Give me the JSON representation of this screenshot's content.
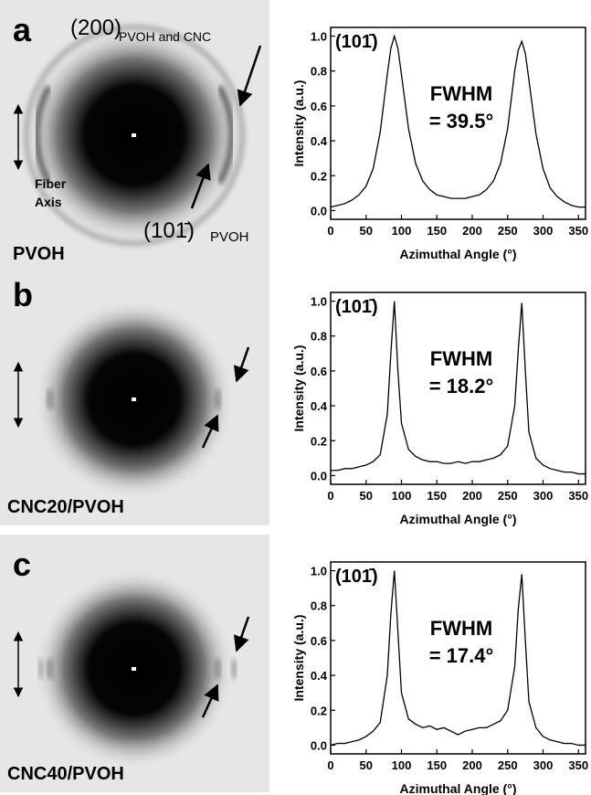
{
  "panels": [
    {
      "label": "a",
      "sample": "PVOH",
      "annotations": [
        "(200)",
        "PVOH and CNC",
        "Fiber",
        "Axis",
        "(101̄)",
        "PVOH"
      ]
    },
    {
      "label": "b",
      "sample": "CNC20/PVOH"
    },
    {
      "label": "c",
      "sample": "CNC40/PVOH"
    }
  ],
  "chart_data": [
    {
      "type": "line",
      "xlabel": "Azimuthal Angle (°)",
      "ylabel": "Intensity (a.u.)",
      "color": "#000000",
      "annotations": [
        "(101̄)",
        "FWHM",
        "= 39.5°"
      ],
      "xlim": [
        0,
        360
      ],
      "xticks": [
        0,
        50,
        100,
        150,
        200,
        250,
        300,
        350
      ],
      "ylim": [
        -0.05,
        1.05
      ],
      "yticks": [
        {
          "value": 0,
          "label": "0.0"
        },
        0.2,
        0.4,
        0.6,
        0.8,
        {
          "value": 1,
          "label": "1.0"
        }
      ],
      "x": [
        0,
        10,
        20,
        30,
        40,
        50,
        60,
        70,
        80,
        85,
        90,
        95,
        100,
        110,
        120,
        130,
        140,
        150,
        160,
        170,
        180,
        190,
        200,
        210,
        220,
        230,
        240,
        250,
        260,
        265,
        270,
        275,
        280,
        290,
        300,
        310,
        320,
        330,
        340,
        350,
        360
      ],
      "values": [
        0.02,
        0.03,
        0.04,
        0.06,
        0.09,
        0.14,
        0.24,
        0.45,
        0.78,
        0.93,
        1.0,
        0.93,
        0.78,
        0.47,
        0.27,
        0.17,
        0.12,
        0.09,
        0.08,
        0.07,
        0.07,
        0.07,
        0.08,
        0.09,
        0.12,
        0.17,
        0.27,
        0.47,
        0.8,
        0.92,
        0.97,
        0.9,
        0.75,
        0.44,
        0.24,
        0.13,
        0.08,
        0.05,
        0.03,
        0.02,
        0.02
      ]
    },
    {
      "type": "line",
      "xlabel": "Azimuthal Angle (°)",
      "ylabel": "Intensity (a.u.)",
      "color": "#000000",
      "annotations": [
        "(101̄)",
        "FWHM",
        "= 18.2°"
      ],
      "xlim": [
        0,
        360
      ],
      "xticks": [
        0,
        50,
        100,
        150,
        200,
        250,
        300,
        350
      ],
      "ylim": [
        -0.05,
        1.05
      ],
      "yticks": [
        {
          "value": 0,
          "label": "0.0"
        },
        0.2,
        0.4,
        0.6,
        0.8,
        {
          "value": 1,
          "label": "1.0"
        }
      ],
      "x": [
        0,
        10,
        20,
        30,
        40,
        50,
        60,
        70,
        80,
        85,
        90,
        95,
        100,
        110,
        120,
        130,
        140,
        150,
        160,
        170,
        180,
        190,
        200,
        210,
        220,
        230,
        240,
        250,
        260,
        265,
        270,
        275,
        280,
        290,
        300,
        310,
        320,
        330,
        340,
        350,
        360
      ],
      "values": [
        0.03,
        0.03,
        0.04,
        0.04,
        0.05,
        0.06,
        0.08,
        0.12,
        0.35,
        0.7,
        1.0,
        0.6,
        0.3,
        0.15,
        0.11,
        0.09,
        0.08,
        0.08,
        0.07,
        0.07,
        0.08,
        0.07,
        0.08,
        0.08,
        0.09,
        0.1,
        0.12,
        0.17,
        0.4,
        0.72,
        0.99,
        0.6,
        0.25,
        0.1,
        0.06,
        0.04,
        0.03,
        0.02,
        0.02,
        0.01,
        0.01
      ]
    },
    {
      "type": "line",
      "xlabel": "Azimuthal Angle (°)",
      "ylabel": "Intensity (a.u.)",
      "color": "#000000",
      "annotations": [
        "(101̄)",
        "FWHM",
        "= 17.4°"
      ],
      "xlim": [
        0,
        360
      ],
      "xticks": [
        0,
        50,
        100,
        150,
        200,
        250,
        300,
        350
      ],
      "ylim": [
        -0.05,
        1.05
      ],
      "yticks": [
        {
          "value": 0,
          "label": "0.0"
        },
        0.2,
        0.4,
        0.6,
        0.8,
        {
          "value": 1,
          "label": "1.0"
        }
      ],
      "x": [
        0,
        10,
        20,
        30,
        40,
        50,
        60,
        70,
        80,
        85,
        90,
        95,
        100,
        110,
        120,
        130,
        140,
        150,
        160,
        170,
        180,
        190,
        200,
        210,
        220,
        230,
        240,
        250,
        260,
        265,
        270,
        275,
        280,
        290,
        300,
        310,
        320,
        330,
        340,
        350,
        360
      ],
      "values": [
        0.0,
        0.01,
        0.01,
        0.02,
        0.03,
        0.05,
        0.08,
        0.13,
        0.4,
        0.75,
        1.0,
        0.65,
        0.3,
        0.15,
        0.12,
        0.1,
        0.11,
        0.09,
        0.1,
        0.08,
        0.06,
        0.08,
        0.09,
        0.1,
        0.1,
        0.12,
        0.14,
        0.2,
        0.45,
        0.78,
        0.98,
        0.6,
        0.25,
        0.1,
        0.05,
        0.03,
        0.02,
        0.01,
        0.01,
        0.0,
        0.0
      ]
    }
  ]
}
